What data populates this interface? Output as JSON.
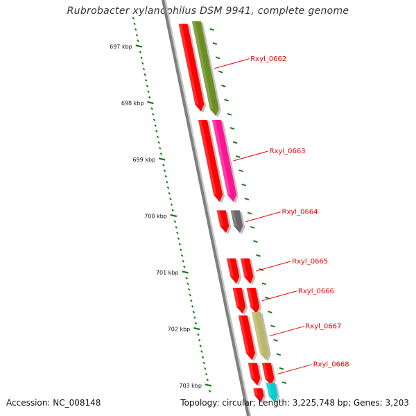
{
  "title": "Rubrobacter xylanophilus DSM 9941, complete genome",
  "footer": {
    "accession": "Accession: NC_008148",
    "topology": "Topology: circular; Length: 3,225,748 bp; Genes: 3,203"
  },
  "colors": {
    "backbone": "#7f7f7f",
    "backbone_shadow": "#c8c8c8",
    "tick": "#1a7a1a",
    "label": "#ee0000",
    "cds": "#ff0000"
  },
  "ticks": [
    {
      "kbp": 697,
      "label": "697 kbp"
    },
    {
      "kbp": 698,
      "label": "698 kbp"
    },
    {
      "kbp": 699,
      "label": "699 kbp"
    },
    {
      "kbp": 700,
      "label": "700 kbp"
    },
    {
      "kbp": 701,
      "label": "701 kbp"
    },
    {
      "kbp": 702,
      "label": "702 kbp"
    },
    {
      "kbp": 703,
      "label": "703 kbp"
    }
  ],
  "features": [
    {
      "name": "Rxyl_0662",
      "start_kbp": 696.55,
      "end_kbp": 698.23,
      "color": "#6b8e23"
    },
    {
      "name": "Rxyl_0663",
      "start_kbp": 698.3,
      "end_kbp": 699.75,
      "color": "#ff1493"
    },
    {
      "name": "Rxyl_0664",
      "start_kbp": 699.9,
      "end_kbp": 700.3,
      "color": "#696969"
    },
    {
      "name": "Rxyl_0665",
      "start_kbp": 700.75,
      "end_kbp": 701.2,
      "color": "#ff0000"
    },
    {
      "name": "Rxyl_0666",
      "start_kbp": 701.27,
      "end_kbp": 701.73,
      "color": "#ff0000"
    },
    {
      "name": "Rxyl_0667",
      "start_kbp": 701.7,
      "end_kbp": 702.55,
      "color": "#bdb76b"
    },
    {
      "name": "Rxyl_0668",
      "start_kbp": 702.6,
      "end_kbp": 703.0,
      "color": "#ff0000"
    },
    {
      "name": "",
      "start_kbp": 702.95,
      "end_kbp": 703.3,
      "color": "#00ced1"
    }
  ],
  "cds_track": [
    {
      "start_kbp": 696.6,
      "end_kbp": 698.15
    },
    {
      "start_kbp": 698.3,
      "end_kbp": 699.75
    },
    {
      "start_kbp": 699.9,
      "end_kbp": 700.3
    },
    {
      "start_kbp": 700.75,
      "end_kbp": 701.2
    },
    {
      "start_kbp": 701.27,
      "end_kbp": 701.73
    },
    {
      "start_kbp": 701.76,
      "end_kbp": 702.55
    },
    {
      "start_kbp": 702.6,
      "end_kbp": 703.0
    },
    {
      "start_kbp": 703.05,
      "end_kbp": 703.3
    }
  ]
}
